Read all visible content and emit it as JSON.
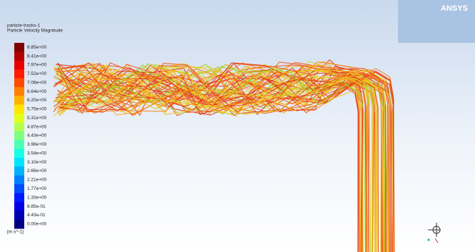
{
  "header": {
    "title": "particle-tracks-1",
    "subtitle": "Particle Velocity Magnitude"
  },
  "logo": {
    "brand": "ANSYS"
  },
  "colorbar": {
    "unit": "[m s^-1]",
    "labels": [
      "8.85e+00",
      "8.41e+00",
      "7.97e+00",
      "7.52e+00",
      "7.08e+00",
      "6.64e+00",
      "6.20e+00",
      "5.75e+00",
      "5.31e+00",
      "4.87e+00",
      "4.43e+00",
      "3.98e+00",
      "3.54e+00",
      "3.10e+00",
      "2.66e+00",
      "2.21e+00",
      "1.77e+00",
      "1.33e+00",
      "8.85e-01",
      "4.43e-01",
      "0.00e+00"
    ]
  }
}
